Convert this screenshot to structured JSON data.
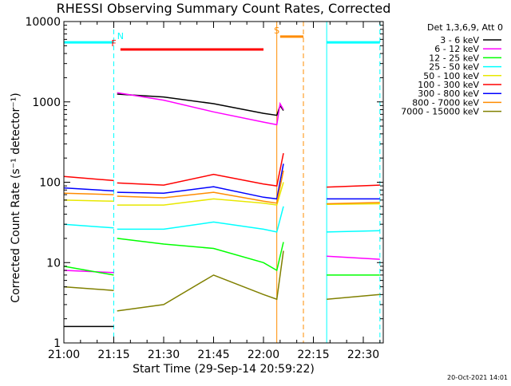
{
  "chart_data": {
    "type": "line",
    "title": "RHESSI Observing Summary Count Rates, Corrected",
    "xlabel": "Start Time (29-Sep-14 20:59:22)",
    "ylabel": "Corrected Count Rate (s⁻¹ detector⁻¹)",
    "yscale": "log",
    "ylim": [
      1,
      10000
    ],
    "xlim": [
      "21:00",
      "22:36"
    ],
    "x_ticks": [
      "21:00",
      "21:15",
      "21:30",
      "21:45",
      "22:00",
      "22:15",
      "22:30"
    ],
    "y_ticks": [
      "1",
      "10",
      "100",
      "1000",
      "10000"
    ],
    "legend_header": "Det 1,3,6,9, Att 0",
    "legend_placement": "right",
    "series": [
      {
        "name": "3 - 6 keV",
        "color": "#000000",
        "segments": [
          [
            [
              "21:00",
              1.6
            ],
            [
              "21:10",
              1.6
            ],
            [
              "21:15",
              1.6
            ]
          ],
          [
            [
              "21:16",
              1250
            ],
            [
              "21:30",
              1150
            ],
            [
              "21:45",
              950
            ],
            [
              "22:00",
              720
            ],
            [
              "22:04",
              680
            ],
            [
              "22:05",
              900
            ],
            [
              "22:06",
              780
            ]
          ]
        ]
      },
      {
        "name": "6 - 12 keV",
        "color": "#ff00ff",
        "segments": [
          [
            [
              "21:00",
              8
            ],
            [
              "21:15",
              7.5
            ]
          ],
          [
            [
              "21:16",
              1300
            ],
            [
              "21:30",
              1050
            ],
            [
              "21:45",
              750
            ],
            [
              "22:00",
              560
            ],
            [
              "22:04",
              520
            ],
            [
              "22:05",
              950
            ],
            [
              "22:06",
              800
            ]
          ],
          [
            [
              "22:19",
              12
            ],
            [
              "22:35",
              11
            ]
          ]
        ]
      },
      {
        "name": "12 - 25 keV",
        "color": "#00ff00",
        "segments": [
          [
            [
              "21:00",
              9
            ],
            [
              "21:15",
              7
            ]
          ],
          [
            [
              "21:16",
              20
            ],
            [
              "21:30",
              17
            ],
            [
              "21:45",
              15
            ],
            [
              "22:00",
              10
            ],
            [
              "22:04",
              8
            ],
            [
              "22:06",
              18
            ]
          ],
          [
            [
              "22:19",
              7
            ],
            [
              "22:35",
              7
            ]
          ]
        ]
      },
      {
        "name": "25 - 50 keV",
        "color": "#00ffff",
        "segments": [
          [
            [
              "21:00",
              30
            ],
            [
              "21:15",
              27
            ]
          ],
          [
            [
              "21:16",
              26
            ],
            [
              "21:30",
              26
            ],
            [
              "21:45",
              32
            ],
            [
              "22:00",
              26
            ],
            [
              "22:04",
              24
            ],
            [
              "22:06",
              50
            ]
          ],
          [
            [
              "22:19",
              24
            ],
            [
              "22:35",
              25
            ]
          ]
        ]
      },
      {
        "name": "50 - 100 keV",
        "color": "#e8e800",
        "segments": [
          [
            [
              "21:00",
              60
            ],
            [
              "21:15",
              58
            ]
          ],
          [
            [
              "21:16",
              52
            ],
            [
              "21:30",
              52
            ],
            [
              "21:45",
              62
            ],
            [
              "22:00",
              55
            ],
            [
              "22:04",
              52
            ],
            [
              "22:06",
              100
            ]
          ],
          [
            [
              "22:19",
              53
            ],
            [
              "22:35",
              54
            ]
          ]
        ]
      },
      {
        "name": "100 - 300 keV",
        "color": "#ff0000",
        "segments": [
          [
            [
              "21:00",
              118
            ],
            [
              "21:15",
              105
            ]
          ],
          [
            [
              "21:16",
              98
            ],
            [
              "21:30",
              92
            ],
            [
              "21:45",
              125
            ],
            [
              "22:00",
              95
            ],
            [
              "22:04",
              90
            ],
            [
              "22:06",
              230
            ]
          ],
          [
            [
              "22:19",
              87
            ],
            [
              "22:35",
              92
            ]
          ]
        ]
      },
      {
        "name": "300 - 800 keV",
        "color": "#0000ff",
        "segments": [
          [
            [
              "21:00",
              85
            ],
            [
              "21:15",
              78
            ]
          ],
          [
            [
              "21:16",
              75
            ],
            [
              "21:30",
              73
            ],
            [
              "21:45",
              88
            ],
            [
              "22:00",
              65
            ],
            [
              "22:04",
              62
            ],
            [
              "22:06",
              170
            ]
          ],
          [
            [
              "22:19",
              62
            ],
            [
              "22:35",
              62
            ]
          ]
        ]
      },
      {
        "name": "800 - 7000 keV",
        "color": "#ff8c00",
        "segments": [
          [
            [
              "21:00",
              73
            ],
            [
              "21:15",
              70
            ]
          ],
          [
            [
              "21:16",
              67
            ],
            [
              "21:30",
              64
            ],
            [
              "21:45",
              75
            ],
            [
              "22:00",
              58
            ],
            [
              "22:04",
              55
            ],
            [
              "22:06",
              140
            ]
          ],
          [
            [
              "22:19",
              54
            ],
            [
              "22:35",
              56
            ]
          ]
        ]
      },
      {
        "name": "7000 - 15000 keV",
        "color": "#808000",
        "segments": [
          [
            [
              "21:00",
              5
            ],
            [
              "21:15",
              4.5
            ]
          ],
          [
            [
              "21:16",
              2.5
            ],
            [
              "21:30",
              3
            ],
            [
              "21:45",
              7
            ],
            [
              "22:00",
              4
            ],
            [
              "22:04",
              3.5
            ],
            [
              "22:06",
              14
            ]
          ],
          [
            [
              "22:19",
              3.5
            ],
            [
              "22:35",
              4
            ]
          ]
        ]
      }
    ],
    "state_bars": [
      {
        "label": "N",
        "color": "#00ffff",
        "y": 5500,
        "x_start": "21:00",
        "x_end": "21:15",
        "label_at": "21:17"
      },
      {
        "label": "N",
        "color": "#00ffff",
        "y": 5500,
        "x_start": "22:19",
        "x_end": "22:35"
      },
      {
        "label": "F",
        "color": "#ff0000",
        "y": 4500,
        "x_start": "21:17",
        "x_end": "22:00",
        "label_at": "21:15"
      },
      {
        "label": "S",
        "color": "#ff8c00",
        "y": 6500,
        "x_start": "22:05",
        "x_end": "22:12",
        "label_at": "22:04"
      }
    ],
    "vertical_markers": [
      {
        "x": "21:00",
        "color": "#00ffff",
        "style": "solid"
      },
      {
        "x": "21:15",
        "color": "#00ffff",
        "style": "dashed"
      },
      {
        "x": "22:04",
        "color": "#ff8c00",
        "style": "solid"
      },
      {
        "x": "22:12",
        "color": "#ff8c00",
        "style": "dashed"
      },
      {
        "x": "22:19",
        "color": "#00ffff",
        "style": "solid"
      },
      {
        "x": "22:35",
        "color": "#00ffff",
        "style": "dashed"
      }
    ]
  },
  "footer_timestamp": "20-Oct-2021 14:01"
}
